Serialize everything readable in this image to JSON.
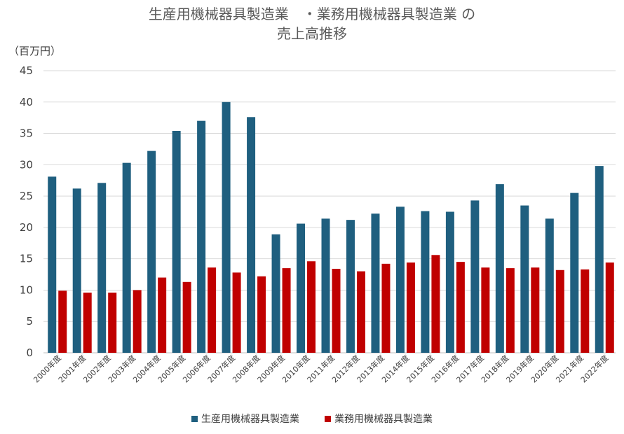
{
  "chart_data": {
    "type": "bar",
    "title_line1": "生産用機械器具製造業　・業務用機械器具製造業 の",
    "title_line2": "売上高推移",
    "unit_label": "（百万円）",
    "ylim": [
      0,
      45
    ],
    "yticks": [
      0,
      5,
      10,
      15,
      20,
      25,
      30,
      35,
      40,
      45
    ],
    "grid": true,
    "legend_position": "bottom",
    "categories": [
      "2000年度",
      "2001年度",
      "2002年度",
      "2003年度",
      "2004年度",
      "2005年度",
      "2006年度",
      "2007年度",
      "2008年度",
      "2009年度",
      "2010年度",
      "2011年度",
      "2012年度",
      "2013年度",
      "2014年度",
      "2015年度",
      "2016年度",
      "2017年度",
      "2018年度",
      "2019年度",
      "2020年度",
      "2021年度",
      "2022年度"
    ],
    "series": [
      {
        "name": "生産用機械器具製造業",
        "color": "#1f5f7f",
        "values": [
          28.1,
          26.2,
          27.1,
          30.3,
          32.2,
          35.4,
          37.0,
          40.0,
          37.6,
          18.9,
          20.6,
          21.4,
          21.2,
          22.2,
          23.3,
          22.6,
          22.5,
          24.3,
          26.9,
          23.5,
          21.4,
          25.5,
          29.8
        ]
      },
      {
        "name": "業務用機械器具製造業",
        "color": "#c00000",
        "values": [
          9.9,
          9.6,
          9.6,
          10.0,
          12.0,
          11.3,
          13.6,
          12.8,
          12.2,
          13.5,
          14.6,
          13.4,
          13.0,
          14.2,
          14.4,
          15.6,
          14.5,
          13.6,
          13.5,
          13.6,
          13.2,
          13.3,
          14.4
        ]
      }
    ]
  }
}
